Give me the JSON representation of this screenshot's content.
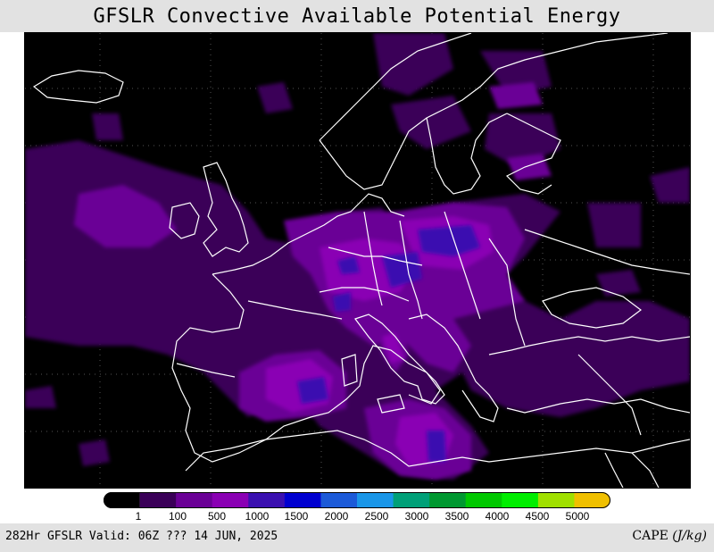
{
  "title": "GFSLR Convective Available Potential Energy",
  "footer": {
    "valid_text": "282Hr GFSLR Valid: 06Z ??? 14 JUN, 2025",
    "variable": "CAPE",
    "units": "(J/kg)"
  },
  "colorbar": {
    "labels": [
      "1",
      "100",
      "500",
      "1000",
      "1500",
      "2000",
      "2500",
      "3000",
      "3500",
      "4000",
      "4500",
      "5000"
    ],
    "colors": [
      "#000000",
      "#3a0058",
      "#6a0096",
      "#8a00b4",
      "#3a10b0",
      "#0000d0",
      "#1c5ad8",
      "#1a96e8",
      "#00a078",
      "#009830",
      "#00c800",
      "#00ee00",
      "#a0e000",
      "#f0c000"
    ]
  },
  "map": {
    "background": "#000000",
    "coastline_color": "#ffffff",
    "gridline_color": "#555555"
  }
}
